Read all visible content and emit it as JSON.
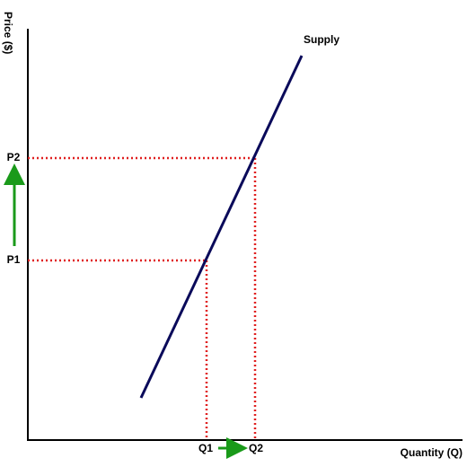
{
  "axis_labels": {
    "y": "Price ($)",
    "x": "Quantity (Q)"
  },
  "curve": {
    "label": "Supply"
  },
  "price_levels": [
    "P1",
    "P2"
  ],
  "quantity_levels": [
    "Q1",
    "Q2"
  ]
}
